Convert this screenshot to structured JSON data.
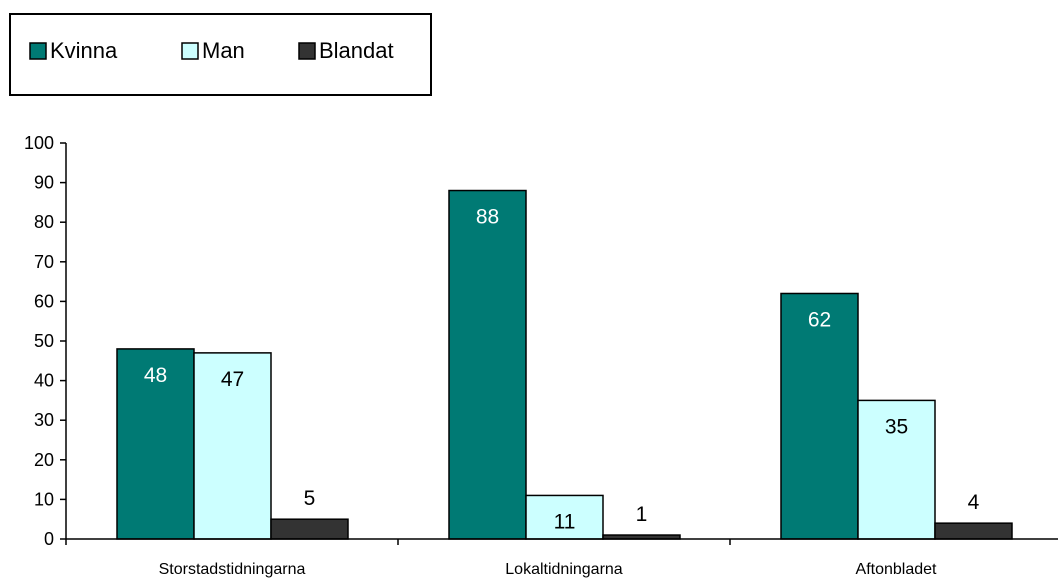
{
  "chart_data": {
    "type": "bar",
    "categories": [
      "Storstadstidningarna",
      "Lokaltidningarna",
      "Aftonbladet"
    ],
    "series": [
      {
        "name": "Kvinna",
        "values": [
          48,
          88,
          62
        ],
        "color": "#007a74",
        "label_color": "#ffffff"
      },
      {
        "name": "Man",
        "values": [
          47,
          11,
          35
        ],
        "color": "#ccffff",
        "label_color": "#000000"
      },
      {
        "name": "Blandat",
        "values": [
          5,
          1,
          4
        ],
        "color": "#333333",
        "label_color": "#000000"
      }
    ],
    "yticks": [
      "0",
      "10",
      "20",
      "30",
      "40",
      "50",
      "60",
      "70",
      "80",
      "90",
      "100"
    ],
    "ylim": [
      0,
      100
    ],
    "grid": false,
    "legend_position": "top-left"
  }
}
